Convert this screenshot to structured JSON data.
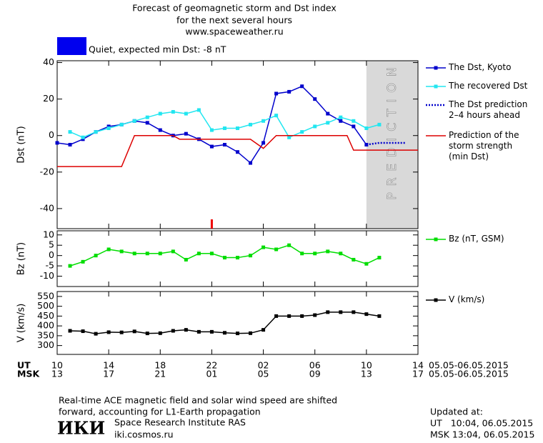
{
  "header": {
    "lines": [
      "Forecast of geomagnetic storm and Dst index",
      "for the next several hours",
      "www.spaceweather.ru"
    ],
    "status": {
      "text": "Quiet, expected min Dst: -8 nT",
      "color": "#0000ee"
    }
  },
  "x_axis": {
    "xlim": [
      10,
      38
    ],
    "rows": [
      {
        "label": "UT",
        "date": "05.05-06.05.2015",
        "xticks": [
          10,
          14,
          18,
          22,
          {
            "value": 26,
            "label": "02"
          },
          {
            "value": 30,
            "label": "06"
          },
          {
            "value": 34,
            "label": "10"
          },
          {
            "value": 38,
            "label": "14"
          }
        ]
      },
      {
        "label": "MSK",
        "date": "05.05-06.05.2015",
        "xticks": [
          {
            "value": 10,
            "label": "13"
          },
          {
            "value": 14,
            "label": "17"
          },
          {
            "value": 18,
            "label": "21"
          },
          {
            "value": 22,
            "label": "01"
          },
          {
            "value": 26,
            "label": "05"
          },
          {
            "value": 30,
            "label": "09"
          },
          {
            "value": 34,
            "label": "13"
          },
          {
            "value": 38,
            "label": "17"
          }
        ]
      }
    ]
  },
  "chart_data": [
    {
      "type": "line",
      "ylabel": "Dst (nT)",
      "ylim": [
        -51,
        41
      ],
      "yticks": [
        40,
        20,
        0,
        -20,
        -40
      ],
      "prediction": {
        "start": 34,
        "label": "PREDICTION",
        "color": "#d9d9d9"
      },
      "now_marker": {
        "x": 22,
        "color": "#ee0000"
      },
      "series": [
        {
          "name": "The Dst, Kyoto",
          "color": "#0000cc",
          "style": "solid",
          "marker": true,
          "x": [
            10,
            11,
            12,
            13,
            14,
            15,
            16,
            17,
            18,
            19,
            20,
            21,
            22,
            23,
            24,
            25,
            26,
            27,
            28,
            29,
            30,
            31,
            32,
            33,
            34
          ],
          "values": [
            -4,
            -5,
            -2,
            2,
            5,
            6,
            8,
            7,
            3,
            0,
            1,
            -2,
            -6,
            -5,
            -9,
            -15,
            -4,
            23,
            24,
            27,
            20,
            12,
            8,
            5,
            -5
          ]
        },
        {
          "name": "The recovered Dst",
          "color": "#22e6f0",
          "style": "solid",
          "marker": true,
          "x": [
            11,
            12,
            13,
            14,
            15,
            16,
            17,
            18,
            19,
            20,
            21,
            22,
            23,
            24,
            25,
            26,
            27,
            28,
            29,
            30,
            31,
            32,
            33,
            34,
            35
          ],
          "values": [
            2,
            -1,
            2,
            4,
            6,
            8,
            10,
            12,
            13,
            12,
            14,
            3,
            4,
            4,
            6,
            8,
            11,
            -1,
            2,
            5,
            7,
            10,
            8,
            4,
            6
          ]
        },
        {
          "name": "The Dst prediction\n2–4 hours ahead",
          "color": "#0000cc",
          "style": "dotted",
          "marker": false,
          "x": [
            34,
            35,
            36,
            37
          ],
          "values": [
            -5,
            -4,
            -4,
            -4
          ]
        },
        {
          "name": "Prediction of the\nstorm strength\n(min Dst)",
          "color": "#dd0000",
          "style": "solid",
          "marker": false,
          "x": [
            10,
            15,
            16,
            19,
            19.5,
            25,
            26,
            27,
            32.5,
            33,
            38
          ],
          "values": [
            -17,
            -17,
            0,
            0,
            -2,
            -2,
            -7,
            0,
            0,
            -8,
            -8
          ]
        }
      ]
    },
    {
      "type": "line",
      "ylabel": "Bz (nT)",
      "ylim": [
        -15,
        12
      ],
      "yticks": [
        10,
        5,
        0,
        -5,
        -10
      ],
      "series": [
        {
          "name": "Bz (nT, GSM)",
          "color": "#00dd00",
          "style": "solid",
          "marker": true,
          "x": [
            11,
            12,
            13,
            14,
            15,
            16,
            17,
            18,
            19,
            20,
            21,
            22,
            23,
            24,
            25,
            26,
            27,
            28,
            29,
            30,
            31,
            32,
            33,
            34,
            35
          ],
          "values": [
            -5,
            -3,
            0,
            3,
            2,
            1,
            1,
            1,
            2,
            -2,
            1,
            1,
            -1,
            -1,
            0,
            4,
            3,
            5,
            1,
            1,
            2,
            1,
            -2,
            -4,
            -1
          ]
        }
      ]
    },
    {
      "type": "line",
      "ylabel": "V (km/s)",
      "ylim": [
        255,
        575
      ],
      "yticks": [
        550,
        500,
        450,
        400,
        350,
        300
      ],
      "series": [
        {
          "name": "V (km/s)",
          "color": "#000000",
          "style": "solid",
          "marker": true,
          "x": [
            11,
            12,
            13,
            14,
            15,
            16,
            17,
            18,
            19,
            20,
            21,
            22,
            23,
            24,
            25,
            26,
            27,
            28,
            29,
            30,
            31,
            32,
            33,
            34,
            35
          ],
          "values": [
            375,
            373,
            360,
            368,
            367,
            372,
            362,
            363,
            375,
            380,
            370,
            370,
            365,
            362,
            363,
            380,
            450,
            450,
            450,
            455,
            470,
            470,
            470,
            460,
            450
          ]
        }
      ]
    }
  ],
  "footer": {
    "note": [
      "Real-time ACE magnetic field and solar wind speed are shifted",
      "forward, accounting for L1-Earth propagation"
    ],
    "logo": "ИКИ",
    "institute": "Space Research Institute RAS",
    "site": "iki.cosmos.ru",
    "updated": [
      "Updated at:",
      "UT   10:04, 06.05.2015",
      "MSK 13:04, 06.05.2015"
    ]
  }
}
